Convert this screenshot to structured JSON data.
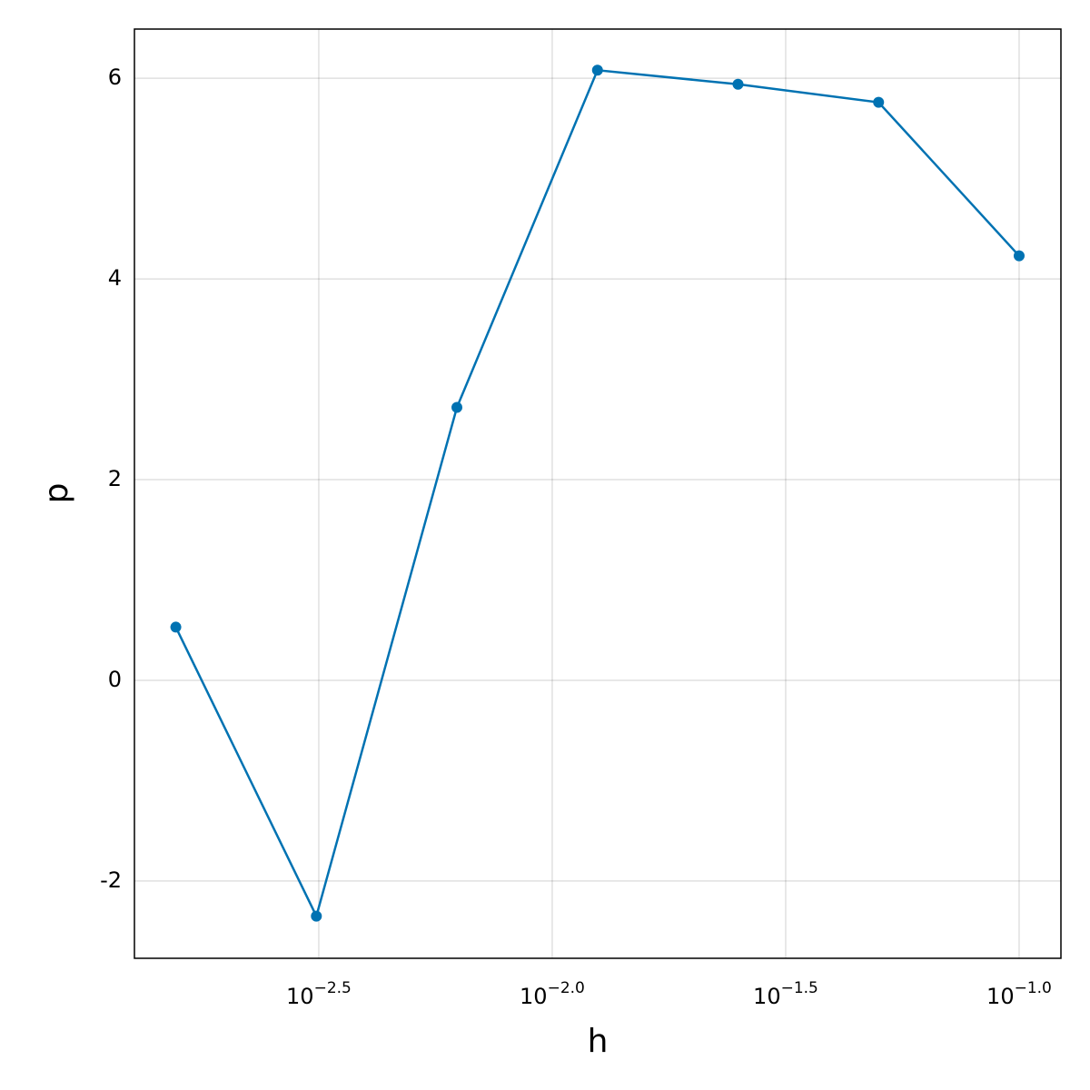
{
  "chart_data": {
    "type": "line",
    "xlabel": "h",
    "ylabel": "p",
    "xscale": "log",
    "x": [
      0.0015625,
      0.003125,
      0.00625,
      0.0125,
      0.025,
      0.05,
      0.1
    ],
    "series": [
      {
        "name": "p",
        "color": "#0072b2",
        "values": [
          0.53,
          -2.35,
          2.72,
          6.08,
          5.94,
          5.76,
          4.23
        ]
      }
    ],
    "xlim": [
      0.001274,
      0.1229
    ],
    "xticks": [
      {
        "value": 0.00316228,
        "label": "10",
        "exponent": "−2.5"
      },
      {
        "value": 0.01,
        "label": "10",
        "exponent": "−2.0"
      },
      {
        "value": 0.0316228,
        "label": "10",
        "exponent": "−1.5"
      },
      {
        "value": 0.1,
        "label": "10",
        "exponent": "−1.0"
      }
    ],
    "ylim": [
      -2.77,
      6.49
    ],
    "yticks": [
      -2,
      0,
      2,
      4,
      6
    ],
    "grid": true,
    "markers": true
  }
}
